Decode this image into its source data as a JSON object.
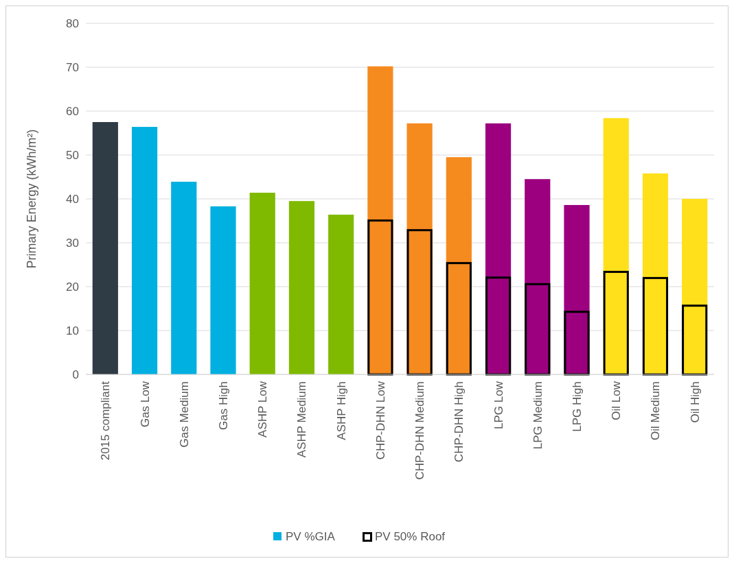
{
  "chart_data": {
    "type": "bar",
    "ylabel": "Primary Energy (kWh/m²)",
    "categories": [
      "2015 compliant",
      "Gas Low",
      "Gas Medium",
      "Gas High",
      "ASHP Low",
      "ASHP Medium",
      "ASHP High",
      "CHP-DHN Low",
      "CHP-DHN Medium",
      "CHP-DHN High",
      "LPG Low",
      "LPG Medium",
      "LPG High",
      "Oil Low",
      "Oil Medium",
      "Oil High"
    ],
    "series": [
      {
        "name": "PV %GIA",
        "color": "#00b0e0",
        "colors": [
          "#2f3b45",
          "#00b0e0",
          "#00b0e0",
          "#00b0e0",
          "#7fba00",
          "#7fba00",
          "#7fba00",
          "#f58a1f",
          "#f58a1f",
          "#f58a1f",
          "#9c007f",
          "#9c007f",
          "#9c007f",
          "#ffe01a",
          "#ffe01a",
          "#ffe01a"
        ],
        "values": [
          57.5,
          56.4,
          43.9,
          38.3,
          41.4,
          39.5,
          36.4,
          70.2,
          57.2,
          49.5,
          57.2,
          44.5,
          38.6,
          58.4,
          45.8,
          40.0
        ]
      },
      {
        "name": "PV 50% Roof",
        "color": "#000000",
        "values": [
          null,
          null,
          null,
          null,
          null,
          null,
          null,
          35.3,
          33.1,
          25.6,
          22.3,
          20.8,
          14.5,
          23.6,
          22.2,
          15.9
        ]
      }
    ],
    "ylim": [
      0,
      80
    ],
    "yticks": [
      0,
      10,
      20,
      30,
      40,
      50,
      60,
      70,
      80
    ],
    "grid": "y",
    "legend": "bottom"
  }
}
